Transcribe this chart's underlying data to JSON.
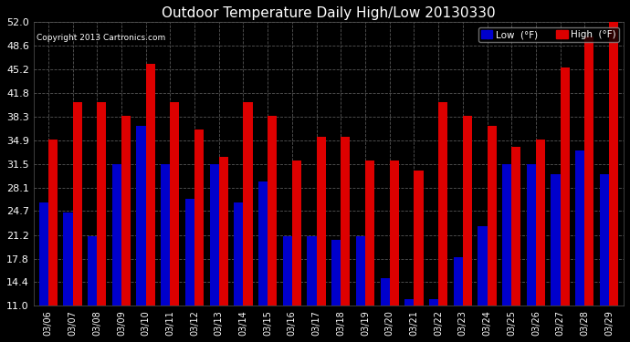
{
  "title": "Outdoor Temperature Daily High/Low 20130330",
  "copyright": "Copyright 2013 Cartronics.com",
  "dates": [
    "03/06",
    "03/07",
    "03/08",
    "03/09",
    "03/10",
    "03/11",
    "03/12",
    "03/13",
    "03/14",
    "03/15",
    "03/16",
    "03/17",
    "03/18",
    "03/19",
    "03/20",
    "03/21",
    "03/22",
    "03/23",
    "03/24",
    "03/25",
    "03/26",
    "03/27",
    "03/28",
    "03/29"
  ],
  "low_values": [
    26.0,
    24.5,
    21.0,
    31.5,
    37.0,
    31.5,
    26.5,
    31.5,
    26.0,
    29.0,
    21.0,
    21.0,
    20.5,
    21.0,
    15.0,
    12.0,
    12.0,
    18.0,
    22.5,
    31.5,
    31.5,
    30.0,
    33.5,
    30.0
  ],
  "high_values": [
    35.0,
    40.5,
    40.5,
    38.5,
    46.0,
    40.5,
    36.5,
    32.5,
    40.5,
    38.5,
    32.0,
    35.5,
    35.5,
    32.0,
    32.0,
    30.5,
    40.5,
    38.5,
    37.0,
    34.0,
    35.0,
    45.5,
    50.0,
    52.0
  ],
  "low_color": "#0000cc",
  "high_color": "#dd0000",
  "bg_color": "#000000",
  "plot_bg_color": "#000000",
  "grid_color": "#555555",
  "title_color": "#ffffff",
  "copyright_color": "#ffffff",
  "tick_color": "#ffffff",
  "ylim": [
    11.0,
    52.0
  ],
  "ybase": 11.0,
  "yticks": [
    11.0,
    14.4,
    17.8,
    21.2,
    24.7,
    28.1,
    31.5,
    34.9,
    38.3,
    41.8,
    45.2,
    48.6,
    52.0
  ],
  "ylabel_fontsize": 8,
  "title_fontsize": 11,
  "tick_fontsize": 7,
  "bar_width": 0.38,
  "legend_low_label": "Low  (°F)",
  "legend_high_label": "High  (°F)"
}
